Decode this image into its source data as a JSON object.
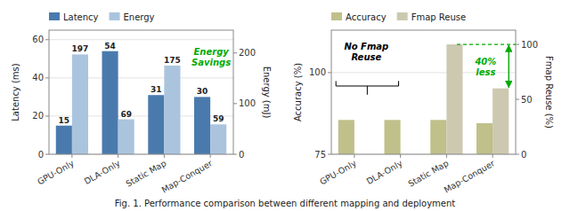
{
  "chart_data": [
    {
      "type": "bar",
      "categories": [
        "GPU-Only",
        "DLA-Only",
        "Static Map",
        "Map-Conquer"
      ],
      "series": [
        {
          "name": "Latency",
          "color": "#4a7aad",
          "axis": "y",
          "values": [
            15,
            54,
            31,
            30
          ]
        },
        {
          "name": "Energy",
          "color": "#aac4de",
          "axis": "y2",
          "values": [
            197,
            69,
            175,
            59
          ]
        }
      ],
      "y_label": "Latency (ms)",
      "y2_label": "Energy (mJ)",
      "ylim": [
        0,
        65
      ],
      "yticks": [
        0,
        20,
        40,
        60
      ],
      "y2lim": [
        0,
        245
      ],
      "y2ticks": [
        0,
        100,
        200
      ],
      "grid": true,
      "legend": "top",
      "data_labels": true,
      "annotations": [
        {
          "text": "Energy\nSavings",
          "color": "#00aa00"
        }
      ]
    },
    {
      "type": "bar",
      "categories": [
        "GPU-Only",
        "DLA-Only",
        "Static Map",
        "Map-Conquer"
      ],
      "series": [
        {
          "name": "Accuracy",
          "color": "#bfc08a",
          "axis": "y",
          "values": [
            85.5,
            85.5,
            85.5,
            84.5
          ]
        },
        {
          "name": "Fmap Reuse",
          "color": "#ccc9b0",
          "axis": "y2",
          "values": [
            0,
            0,
            100,
            60
          ]
        }
      ],
      "y_label": "Accuracy (%)",
      "y2_label": "Fmap Reuse (%)",
      "ylim": [
        75,
        113
      ],
      "yticks": [
        75,
        100
      ],
      "y2lim": [
        0,
        113
      ],
      "y2ticks": [
        0,
        50,
        100
      ],
      "grid": true,
      "legend": "top",
      "annotations": [
        {
          "text": "No Fmap\nReuse",
          "color": "#000000"
        },
        {
          "text": "40%\nless",
          "color": "#00aa00"
        }
      ]
    }
  ],
  "caption": "Fig. 1.   Performance comparison between different mapping and deployment"
}
